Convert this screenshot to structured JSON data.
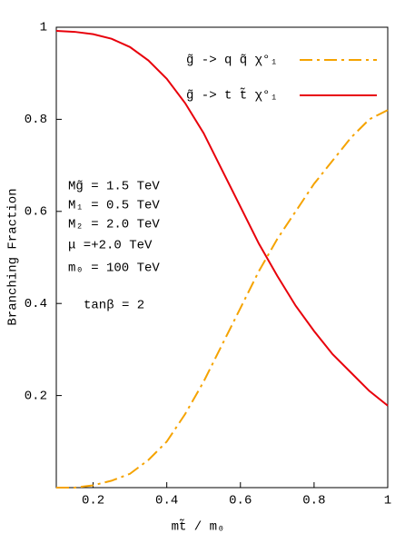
{
  "chart_data": {
    "type": "line",
    "xlabel": "mt̃ / m₀",
    "ylabel": "Branching Fraction",
    "x": [
      0.1,
      0.15,
      0.2,
      0.25,
      0.3,
      0.35,
      0.4,
      0.45,
      0.5,
      0.55,
      0.6,
      0.65,
      0.7,
      0.75,
      0.8,
      0.85,
      0.9,
      0.95,
      1.0
    ],
    "series": [
      {
        "name": "g̃ -> q q̃ χ°₁",
        "color": "#f5a300",
        "dash": "14 5 3 5",
        "values": [
          0,
          0,
          0.005,
          0.015,
          0.03,
          0.06,
          0.1,
          0.16,
          0.23,
          0.31,
          0.39,
          0.47,
          0.54,
          0.6,
          0.66,
          0.71,
          0.76,
          0.8,
          0.82
        ]
      },
      {
        "name": "g̃ -> t t̃ χ°₁",
        "color": "#e8000b",
        "dash": "none",
        "values": [
          0.992,
          0.99,
          0.985,
          0.975,
          0.957,
          0.928,
          0.888,
          0.835,
          0.77,
          0.69,
          0.61,
          0.53,
          0.46,
          0.395,
          0.34,
          0.29,
          0.25,
          0.21,
          0.178
        ]
      }
    ],
    "xlim": [
      0.1,
      1
    ],
    "ylim": [
      0,
      1
    ],
    "xticks": [
      0.2,
      0.4,
      0.6,
      0.8,
      1
    ],
    "yticks": [
      0.2,
      0.4,
      0.6,
      0.8,
      1
    ],
    "annotations": [
      "Mg̃ = 1.5 TeV",
      "M₁ = 0.5 TeV",
      "M₂ = 2.0 TeV",
      "μ =+2.0 TeV",
      "m₀ = 100 TeV",
      "tanβ = 2"
    ]
  }
}
